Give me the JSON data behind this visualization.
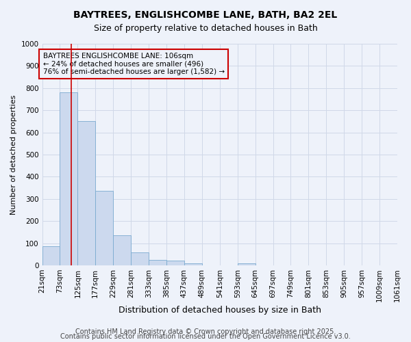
{
  "title": "BAYTREES, ENGLISHCOMBE LANE, BATH, BA2 2EL",
  "subtitle": "Size of property relative to detached houses in Bath",
  "xlabel": "Distribution of detached houses by size in Bath",
  "ylabel": "Number of detached properties",
  "bar_color": "#ccd9ee",
  "bar_edge_color": "#7aaad0",
  "bin_edges": [
    21,
    73,
    125,
    177,
    229,
    281,
    333,
    385,
    437,
    489,
    541,
    593,
    645,
    697,
    749,
    801,
    853,
    905,
    957,
    1009,
    1061
  ],
  "bar_heights": [
    85,
    780,
    650,
    335,
    135,
    60,
    25,
    20,
    10,
    0,
    0,
    10,
    0,
    0,
    0,
    0,
    0,
    0,
    0,
    0
  ],
  "red_line_x": 106,
  "red_line_color": "#cc0000",
  "annotation_text": "BAYTREES ENGLISHCOMBE LANE: 106sqm\n← 24% of detached houses are smaller (496)\n76% of semi-detached houses are larger (1,582) →",
  "annotation_box_color": "#cc0000",
  "ylim": [
    0,
    1000
  ],
  "yticks": [
    0,
    100,
    200,
    300,
    400,
    500,
    600,
    700,
    800,
    900,
    1000
  ],
  "grid_color": "#d0d8e8",
  "background_color": "#eef2fa",
  "footer_line1": "Contains HM Land Registry data © Crown copyright and database right 2025.",
  "footer_line2": "Contains public sector information licensed under the Open Government Licence v3.0.",
  "title_fontsize": 10,
  "subtitle_fontsize": 9,
  "annotation_fontsize": 7.5,
  "footer_fontsize": 7,
  "tick_fontsize": 7.5,
  "ylabel_fontsize": 8,
  "xlabel_fontsize": 9
}
